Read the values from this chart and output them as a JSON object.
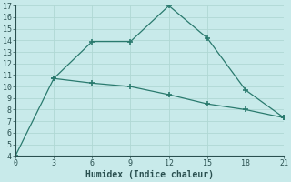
{
  "xlabel": "Humidex (Indice chaleur)",
  "line1_x": [
    0,
    3,
    6,
    9,
    12,
    15,
    18,
    21
  ],
  "line1_y": [
    4,
    10.7,
    13.9,
    13.9,
    17,
    14.2,
    9.7,
    7.3
  ],
  "line2_x": [
    3,
    6,
    9,
    12,
    15,
    18,
    21
  ],
  "line2_y": [
    10.7,
    10.3,
    10.0,
    9.3,
    8.5,
    8.0,
    7.3
  ],
  "line_color": "#2a7a6e",
  "bg_color": "#c8eaea",
  "grid_color": "#b0d8d4",
  "xlim": [
    0,
    21
  ],
  "ylim": [
    4,
    17
  ],
  "xticks": [
    0,
    3,
    6,
    9,
    12,
    15,
    18,
    21
  ],
  "yticks": [
    4,
    5,
    6,
    7,
    8,
    9,
    10,
    11,
    12,
    13,
    14,
    15,
    16,
    17
  ],
  "tick_fontsize": 6,
  "xlabel_fontsize": 7,
  "tick_color": "#2a5050",
  "spine_color": "#2a5050"
}
